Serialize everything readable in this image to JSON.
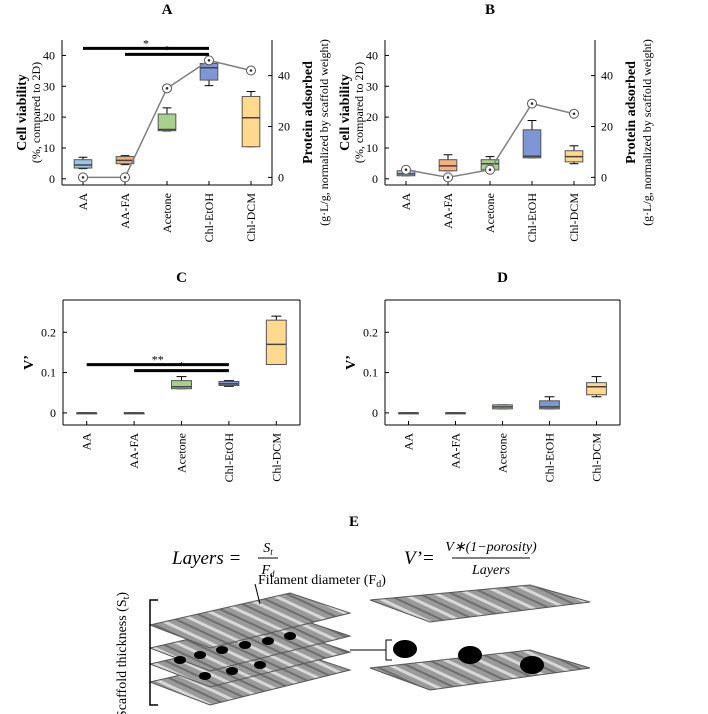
{
  "chart_data": [
    {
      "type": "box",
      "title": "A",
      "ylabel": "Cell viability",
      "ylabel_sub": "(%, compared to 2D)",
      "y2label": "Protein adsorbed",
      "y2label_sub": "(g·L/g, normalized by scaffold weight)",
      "categories": [
        "AA",
        "AA-FA",
        "Acetone",
        "Chl-EtOH",
        "Chl-DCM"
      ],
      "boxes": [
        {
          "color": "#9dc3e6",
          "min": 3.3,
          "q1": 3.5,
          "median": 4.5,
          "q3": 6.2,
          "max": 7
        },
        {
          "color": "#f4b183",
          "min": 4.6,
          "q1": 4.9,
          "median": 6,
          "q3": 7.2,
          "max": 7.5
        },
        {
          "color": "#a9d18e",
          "min": 15.5,
          "q1": 15.6,
          "median": 16,
          "q3": 21,
          "max": 23
        },
        {
          "color": "#7f96d6",
          "min": 30.2,
          "q1": 32,
          "median": 36,
          "q3": 37.4,
          "max": 38.4
        },
        {
          "color": "#ffd98e",
          "min": 10.4,
          "q1": 10.4,
          "median": 19.8,
          "q3": 26.7,
          "max": 28.3
        }
      ],
      "line": {
        "color": "#808080",
        "axis": "y2",
        "values": [
          0,
          0,
          35,
          46,
          42
        ]
      },
      "annotations": [
        {
          "from": "AA",
          "to": "Chl-EtOH",
          "label": "*"
        },
        {
          "from": "AA-FA",
          "to": "Chl-EtOH",
          "label": "*"
        }
      ],
      "ylim": [
        -2,
        45
      ],
      "yticks": [
        0,
        10,
        20,
        30,
        40
      ],
      "y2lim": [
        -3,
        54
      ],
      "y2ticks": [
        0,
        20,
        40
      ]
    },
    {
      "type": "box",
      "title": "B",
      "ylabel": "Cell viability",
      "ylabel_sub": "(%, compared to 2D)",
      "y2label": "Protein adsorbed",
      "y2label_sub": "(g·L/g, normalized by scaffold weight)",
      "categories": [
        "AA",
        "AA-FA",
        "Acetone",
        "Chl-EtOH",
        "Chl-DCM"
      ],
      "boxes": [
        {
          "color": "#9dc3e6",
          "min": 1,
          "q1": 1,
          "median": 1.6,
          "q3": 2.6,
          "max": 2.9
        },
        {
          "color": "#f4b183",
          "min": 2.6,
          "q1": 2.6,
          "median": 4.2,
          "q3": 6.2,
          "max": 7.8
        },
        {
          "color": "#a9d18e",
          "min": 2.9,
          "q1": 2.9,
          "median": 4.9,
          "q3": 6.2,
          "max": 7.2
        },
        {
          "color": "#7f96d6",
          "min": 6.8,
          "q1": 6.8,
          "median": 7.3,
          "q3": 15.9,
          "max": 18.9
        },
        {
          "color": "#ffd98e",
          "min": 4.9,
          "q1": 5.5,
          "median": 7.2,
          "q3": 9.1,
          "max": 10.7
        }
      ],
      "line": {
        "color": "#808080",
        "axis": "y2",
        "values": [
          3,
          0,
          3,
          29,
          25
        ]
      },
      "ylim": [
        -2,
        45
      ],
      "yticks": [
        0,
        10,
        20,
        30,
        40
      ],
      "y2lim": [
        -3,
        54
      ],
      "y2ticks": [
        0,
        20,
        40
      ]
    },
    {
      "type": "box",
      "title": "C",
      "ylabel": "V’",
      "categories": [
        "AA",
        "AA-FA",
        "Acetone",
        "Chl-EtOH",
        "Chl-DCM"
      ],
      "boxes": [
        {
          "color": "#9dc3e6",
          "min": 0,
          "q1": 0,
          "median": 0,
          "q3": 0,
          "max": 0
        },
        {
          "color": "#f4b183",
          "min": 0,
          "q1": 0,
          "median": 0,
          "q3": 0,
          "max": 0
        },
        {
          "color": "#a9d18e",
          "min": 0.06,
          "q1": 0.06,
          "median": 0.065,
          "q3": 0.08,
          "max": 0.09
        },
        {
          "color": "#7f96d6",
          "min": 0.066,
          "q1": 0.068,
          "median": 0.072,
          "q3": 0.078,
          "max": 0.08
        },
        {
          "color": "#ffd98e",
          "min": 0.12,
          "q1": 0.12,
          "median": 0.17,
          "q3": 0.23,
          "max": 0.24
        }
      ],
      "annotations": [
        {
          "from": "AA",
          "to": "Chl-EtOH",
          "label": "**"
        },
        {
          "from": "AA-FA",
          "to": "Chl-EtOH",
          "label": "*"
        }
      ],
      "ylim": [
        -0.03,
        0.28
      ],
      "yticks": [
        0,
        0.1,
        0.2
      ]
    },
    {
      "type": "box",
      "title": "D",
      "ylabel": "V’",
      "categories": [
        "AA",
        "AA-FA",
        "Acetone",
        "Chl-EtOH",
        "Chl-DCM"
      ],
      "boxes": [
        {
          "color": "#9dc3e6",
          "min": 0,
          "q1": 0,
          "median": 0,
          "q3": 0,
          "max": 0
        },
        {
          "color": "#f4b183",
          "min": 0,
          "q1": 0,
          "median": 0,
          "q3": 0,
          "max": 0
        },
        {
          "color": "#a9d18e",
          "min": 0.01,
          "q1": 0.01,
          "median": 0.015,
          "q3": 0.02,
          "max": 0.02
        },
        {
          "color": "#7f96d6",
          "min": 0.01,
          "q1": 0.01,
          "median": 0.015,
          "q3": 0.03,
          "max": 0.04
        },
        {
          "color": "#ffd98e",
          "min": 0.04,
          "q1": 0.045,
          "median": 0.065,
          "q3": 0.075,
          "max": 0.09
        }
      ],
      "ylim": [
        -0.03,
        0.28
      ],
      "yticks": [
        0,
        0.1,
        0.2
      ]
    }
  ],
  "panel_e": {
    "title": "E",
    "thickness": {
      "text": "Scaffold thickness (S",
      "sub": "t",
      "end": ")"
    },
    "layers_lhs": "Layers =",
    "layers_num": "S",
    "layers_num_sub": "t",
    "layers_den": "F",
    "layers_den_sub": "d",
    "filament": {
      "text": "Filament diameter (F",
      "sub": "d",
      "end": ")"
    },
    "v_lhs": "V’=",
    "v_num": "V∗(1−porosity)",
    "v_den": "Layers"
  }
}
